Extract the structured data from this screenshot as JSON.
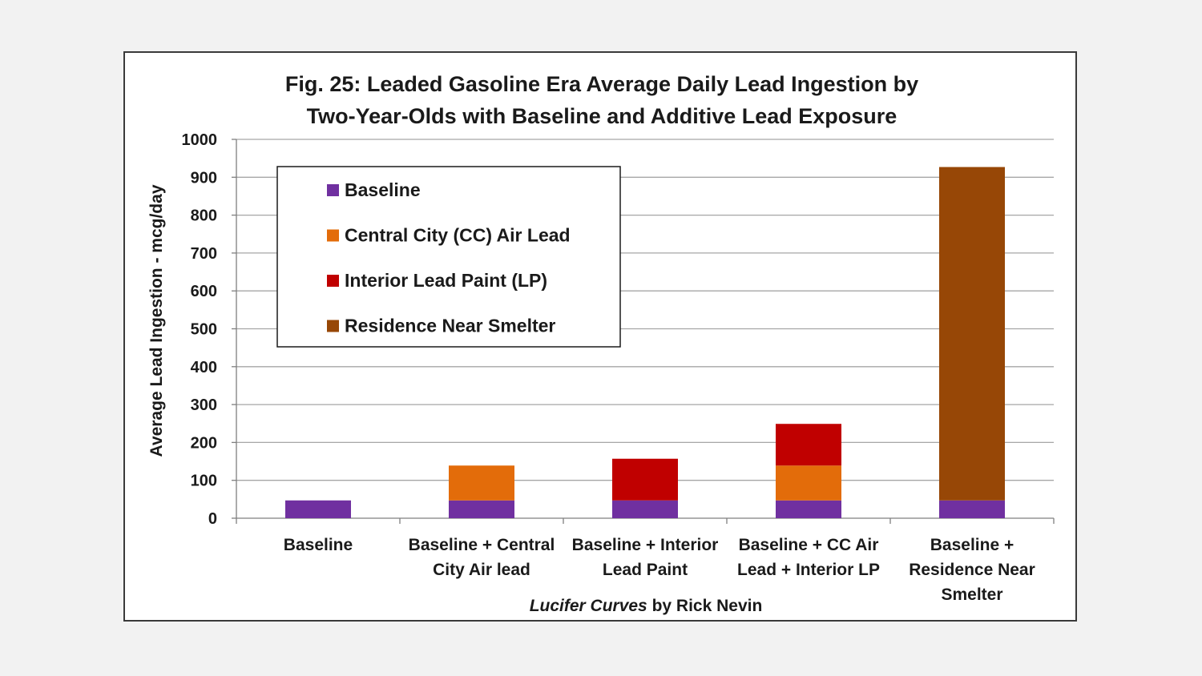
{
  "chart_data": {
    "type": "bar",
    "stacked": true,
    "title": [
      "Fig. 25: Leaded Gasoline Era Average Daily Lead Ingestion by",
      "Two-Year-Olds with Baseline and Additive Lead Exposure"
    ],
    "ylabel": "Average Lead Ingestion - mcg/day",
    "xlabel": "",
    "ylim": [
      0,
      1000
    ],
    "yticks": [
      0,
      100,
      200,
      300,
      400,
      500,
      600,
      700,
      800,
      900,
      1000
    ],
    "grid": true,
    "legend_position": "top-left",
    "categories": [
      [
        "Baseline"
      ],
      [
        "Baseline + Central",
        "City Air lead"
      ],
      [
        "Baseline + Interior",
        "Lead Paint"
      ],
      [
        "Baseline + CC Air",
        "Lead + Interior LP"
      ],
      [
        "Baseline +",
        "Residence Near",
        "Smelter"
      ]
    ],
    "series": [
      {
        "name": "Baseline",
        "color": "#7030a0",
        "values": [
          47,
          47,
          47,
          47,
          47
        ]
      },
      {
        "name": "Central City (CC) Air Lead",
        "color": "#e36c0a",
        "values": [
          0,
          92,
          0,
          92,
          0
        ]
      },
      {
        "name": "Interior Lead Paint (LP)",
        "color": "#c00000",
        "values": [
          0,
          0,
          110,
          110,
          0
        ]
      },
      {
        "name": "Residence Near Smelter",
        "color": "#974706",
        "values": [
          0,
          0,
          0,
          0,
          880
        ]
      }
    ],
    "credit": {
      "italic": "Lucifer Curves",
      "rest": " by Rick Nevin"
    }
  }
}
